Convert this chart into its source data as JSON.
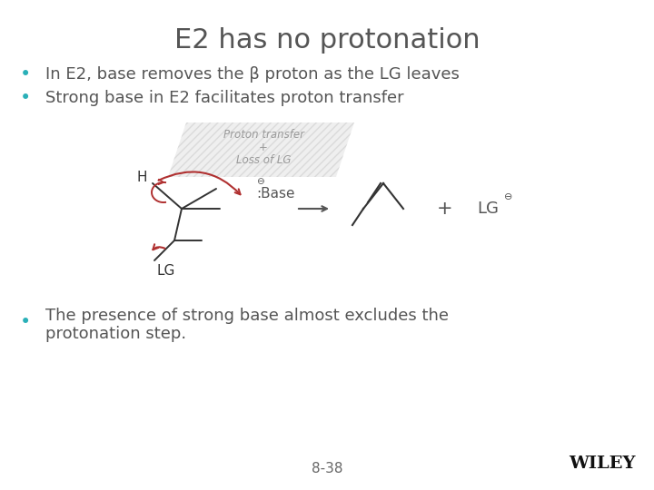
{
  "title": "E2 has no protonation",
  "title_fontsize": 22,
  "title_color": "#555555",
  "background_color": "#ffffff",
  "bullet_color": "#2ab0b8",
  "bullet_text_color": "#555555",
  "bullet_fontsize": 13,
  "bullets": [
    "In E2, base removes the β proton as the LG leaves",
    "Strong base in E2 facilitates proton transfer"
  ],
  "bullet3_line1": "The presence of strong base almost excludes the",
  "bullet3_line2": "protonation step.",
  "footer": "8-38",
  "wiley": "WILEY",
  "diagram_label_color": "#999999",
  "arrow_color": "#b03030",
  "text_color_dark": "#555555",
  "shade_color": "#cccccc",
  "shade_alpha": 0.3,
  "hatch_color": "#aaaaaa"
}
